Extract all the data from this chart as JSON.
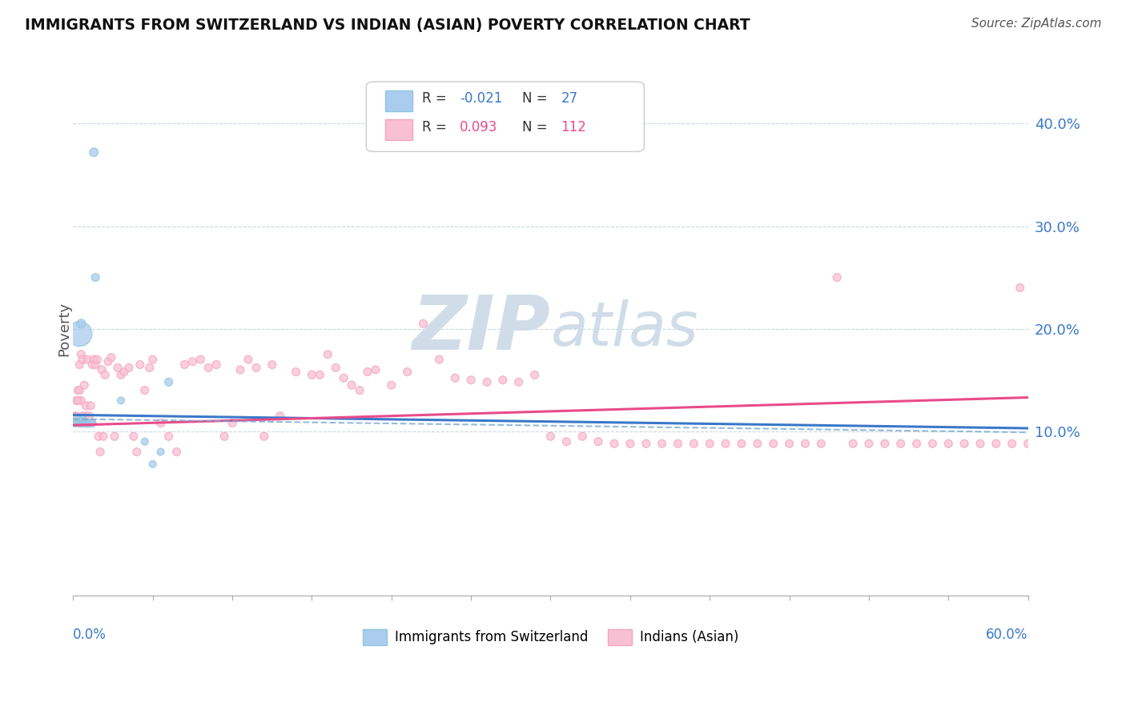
{
  "title": "IMMIGRANTS FROM SWITZERLAND VS INDIAN (ASIAN) POVERTY CORRELATION CHART",
  "source": "Source: ZipAtlas.com",
  "ylabel": "Poverty",
  "y_tick_labels": [
    "10.0%",
    "20.0%",
    "30.0%",
    "40.0%"
  ],
  "y_tick_values": [
    0.1,
    0.2,
    0.3,
    0.4
  ],
  "legend_r1": "R = -0.021",
  "legend_n1": "N =  27",
  "legend_r2": "R =  0.093",
  "legend_n2": "N = 112",
  "blue_color": "#92c5de",
  "pink_color": "#f4a6c0",
  "blue_face_color": "#aaccee",
  "pink_face_color": "#f9c0d4",
  "blue_line_color": "#3a78c9",
  "pink_line_color": "#e84b8a",
  "blue_dash_color": "#7aaad0",
  "tick_label_color": "#3a78c9",
  "watermark_color": "#d0dde8",
  "xlim": [
    0.0,
    0.6
  ],
  "ylim": [
    -0.06,
    0.46
  ],
  "blue_trend": [
    0.0,
    0.6,
    0.116,
    0.103
  ],
  "blue_dash_trend": [
    0.0,
    0.6,
    0.112,
    0.099
  ],
  "pink_trend": [
    0.0,
    0.6,
    0.106,
    0.133
  ],
  "blue_x": [
    0.001,
    0.002,
    0.003,
    0.003,
    0.004,
    0.004,
    0.005,
    0.005,
    0.006,
    0.006,
    0.007,
    0.007,
    0.008,
    0.008,
    0.009,
    0.009,
    0.01,
    0.01,
    0.011,
    0.012,
    0.013,
    0.014,
    0.03,
    0.045,
    0.05,
    0.055,
    0.06
  ],
  "blue_y": [
    0.108,
    0.108,
    0.113,
    0.108,
    0.195,
    0.108,
    0.205,
    0.108,
    0.112,
    0.108,
    0.11,
    0.108,
    0.108,
    0.108,
    0.108,
    0.108,
    0.108,
    0.108,
    0.108,
    0.108,
    0.372,
    0.25,
    0.13,
    0.09,
    0.068,
    0.08,
    0.148
  ],
  "blue_s": [
    40,
    40,
    40,
    40,
    500,
    40,
    60,
    40,
    40,
    40,
    40,
    40,
    40,
    40,
    40,
    40,
    40,
    40,
    40,
    40,
    60,
    50,
    40,
    40,
    40,
    40,
    50
  ],
  "pink_x": [
    0.001,
    0.002,
    0.003,
    0.004,
    0.005,
    0.005,
    0.006,
    0.007,
    0.008,
    0.009,
    0.01,
    0.011,
    0.012,
    0.013,
    0.014,
    0.015,
    0.016,
    0.017,
    0.018,
    0.019,
    0.02,
    0.022,
    0.024,
    0.026,
    0.028,
    0.03,
    0.032,
    0.035,
    0.038,
    0.04,
    0.042,
    0.045,
    0.048,
    0.05,
    0.055,
    0.06,
    0.065,
    0.07,
    0.075,
    0.08,
    0.085,
    0.09,
    0.095,
    0.1,
    0.105,
    0.11,
    0.115,
    0.12,
    0.125,
    0.13,
    0.14,
    0.15,
    0.155,
    0.16,
    0.165,
    0.17,
    0.175,
    0.18,
    0.185,
    0.19,
    0.2,
    0.21,
    0.22,
    0.23,
    0.24,
    0.25,
    0.26,
    0.27,
    0.28,
    0.29,
    0.3,
    0.31,
    0.32,
    0.33,
    0.34,
    0.35,
    0.36,
    0.37,
    0.38,
    0.39,
    0.4,
    0.41,
    0.42,
    0.43,
    0.44,
    0.45,
    0.46,
    0.47,
    0.48,
    0.49,
    0.5,
    0.51,
    0.52,
    0.53,
    0.54,
    0.55,
    0.56,
    0.57,
    0.58,
    0.59,
    0.595,
    0.6,
    0.002,
    0.003,
    0.004,
    0.005,
    0.006,
    0.007,
    0.008,
    0.009,
    0.01,
    0.012
  ],
  "pink_y": [
    0.115,
    0.13,
    0.14,
    0.165,
    0.175,
    0.13,
    0.17,
    0.145,
    0.125,
    0.17,
    0.108,
    0.125,
    0.165,
    0.17,
    0.165,
    0.17,
    0.095,
    0.08,
    0.16,
    0.095,
    0.155,
    0.168,
    0.172,
    0.095,
    0.162,
    0.155,
    0.158,
    0.162,
    0.095,
    0.08,
    0.165,
    0.14,
    0.162,
    0.17,
    0.108,
    0.095,
    0.08,
    0.165,
    0.168,
    0.17,
    0.162,
    0.165,
    0.095,
    0.108,
    0.16,
    0.17,
    0.162,
    0.095,
    0.165,
    0.115,
    0.158,
    0.155,
    0.155,
    0.175,
    0.162,
    0.152,
    0.145,
    0.14,
    0.158,
    0.16,
    0.145,
    0.158,
    0.205,
    0.17,
    0.152,
    0.15,
    0.148,
    0.15,
    0.148,
    0.155,
    0.095,
    0.09,
    0.095,
    0.09,
    0.088,
    0.088,
    0.088,
    0.088,
    0.088,
    0.088,
    0.088,
    0.088,
    0.088,
    0.088,
    0.088,
    0.088,
    0.088,
    0.088,
    0.25,
    0.088,
    0.088,
    0.088,
    0.088,
    0.088,
    0.088,
    0.088,
    0.088,
    0.088,
    0.088,
    0.088,
    0.24,
    0.088,
    0.115,
    0.13,
    0.14,
    0.108,
    0.115,
    0.108,
    0.115,
    0.108,
    0.115,
    0.108
  ],
  "pink_s": [
    50,
    50,
    50,
    50,
    50,
    50,
    50,
    50,
    50,
    50,
    50,
    50,
    50,
    50,
    50,
    50,
    50,
    50,
    50,
    50,
    50,
    50,
    50,
    50,
    50,
    50,
    50,
    50,
    50,
    50,
    50,
    50,
    50,
    50,
    50,
    50,
    50,
    50,
    50,
    50,
    50,
    50,
    50,
    50,
    50,
    50,
    50,
    50,
    50,
    50,
    50,
    50,
    50,
    50,
    50,
    50,
    50,
    50,
    50,
    50,
    50,
    50,
    50,
    50,
    50,
    50,
    50,
    50,
    50,
    50,
    50,
    50,
    50,
    50,
    50,
    50,
    50,
    50,
    50,
    50,
    50,
    50,
    50,
    50,
    50,
    50,
    50,
    50,
    50,
    50,
    50,
    50,
    50,
    50,
    50,
    50,
    50,
    50,
    50,
    50,
    50,
    50,
    50,
    50,
    50,
    50,
    50,
    50,
    50,
    50,
    50,
    50
  ]
}
